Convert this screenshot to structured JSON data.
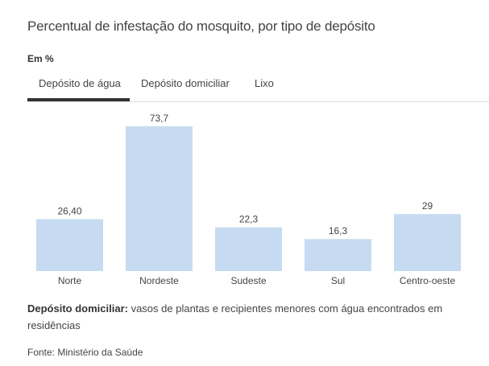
{
  "header": {
    "title": "Percentual de infestação do mosquito, por tipo de depósito",
    "unit": "Em %"
  },
  "tabs": [
    {
      "label": "Depósito de água",
      "active": true
    },
    {
      "label": "Depósito domiciliar",
      "active": false
    },
    {
      "label": "Lixo",
      "active": false
    }
  ],
  "colors": {
    "bar": "#c6dbf1",
    "tab_active": "#333333"
  },
  "chart_data": {
    "type": "bar",
    "title": "Percentual de infestação do mosquito, por tipo de depósito",
    "xlabel": "",
    "ylabel": "Em %",
    "categories": [
      "Norte",
      "Nordeste",
      "Sudeste",
      "Sul",
      "Centro-oeste"
    ],
    "values": [
      26.4,
      73.7,
      22.3,
      16.3,
      29
    ],
    "value_labels": [
      "26,40",
      "73,7",
      "22,3",
      "16,3",
      "29"
    ],
    "ylim": [
      0,
      73.7
    ],
    "grid": false
  },
  "note": {
    "bold": "Depósito domiciliar:",
    "text": " vasos de plantas e recipientes menores com água encontrados em residências"
  },
  "source": "Fonte: Ministério da Saúde"
}
